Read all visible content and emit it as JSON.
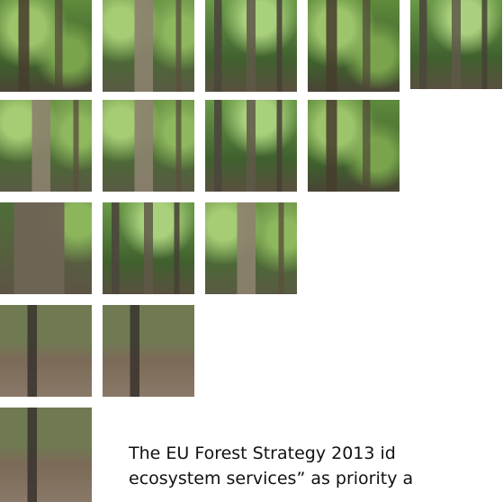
{
  "paragraph": {
    "lines": [
      "The EU Forest Strategy 2013 id",
      "ecosystem services” as priority a"
    ]
  }
}
